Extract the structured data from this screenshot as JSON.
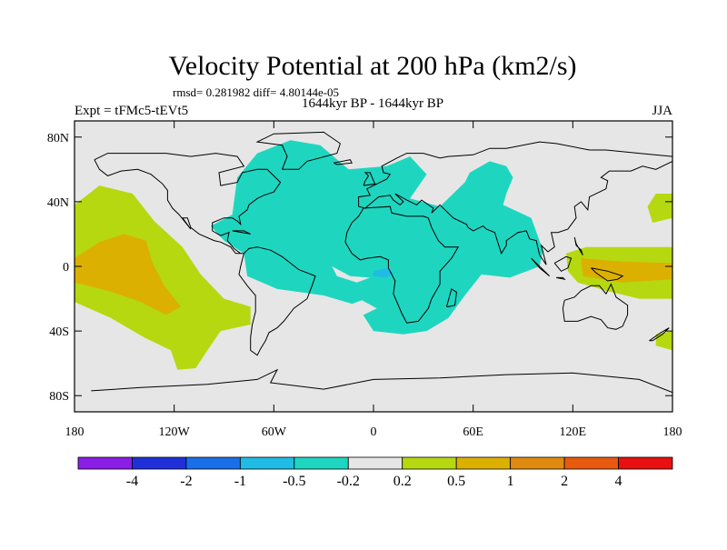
{
  "chart_data": {
    "type": "heatmap",
    "title": "Velocity Potential at 200 hPa (km2/s)",
    "stats": "rmsd= 0.281982 diff= 4.80144e-05",
    "experiment": "Expt = tFMc5-tEVt5",
    "period": "1644kyr BP - 1644kyr BP",
    "season": "JJA",
    "x_range": [
      -180,
      180
    ],
    "y_range": [
      -90,
      90
    ],
    "x_ticks": [
      {
        "value": -180,
        "label": "180"
      },
      {
        "value": -120,
        "label": "120W"
      },
      {
        "value": -60,
        "label": "60W"
      },
      {
        "value": 0,
        "label": "0"
      },
      {
        "value": 60,
        "label": "60E"
      },
      {
        "value": 120,
        "label": "120E"
      },
      {
        "value": 180,
        "label": "180"
      }
    ],
    "y_ticks": [
      {
        "value": 80,
        "label": "80N"
      },
      {
        "value": 40,
        "label": "40N"
      },
      {
        "value": 0,
        "label": "0"
      },
      {
        "value": -40,
        "label": "40S"
      },
      {
        "value": -80,
        "label": "80S"
      }
    ],
    "colorbar": {
      "colors": [
        "#8a1ee6",
        "#2030d8",
        "#1a6ee8",
        "#20bce6",
        "#1ed6c0",
        "#e6e6e6",
        "#b6d810",
        "#dcb000",
        "#e08a10",
        "#e85a10",
        "#e81010"
      ],
      "labels": [
        "-4",
        "-2",
        "-1",
        "-0.5",
        "-0.2",
        "0.2",
        "0.5",
        "1",
        "2",
        "4"
      ]
    },
    "regions": [
      {
        "name": "pacific-positive",
        "level": "0.2 to 0.5",
        "color": "#b6d810",
        "points": [
          [
            -180,
            38
          ],
          [
            -165,
            50
          ],
          [
            -145,
            45
          ],
          [
            -132,
            28
          ],
          [
            -115,
            12
          ],
          [
            -104,
            -5
          ],
          [
            -90,
            -20
          ],
          [
            -74,
            -25
          ],
          [
            -74,
            -36
          ],
          [
            -92,
            -40
          ],
          [
            -100,
            -52
          ],
          [
            -107,
            -63
          ],
          [
            -118,
            -64
          ],
          [
            -122,
            -52
          ],
          [
            -138,
            -44
          ],
          [
            -158,
            -32
          ],
          [
            -180,
            -22
          ]
        ]
      },
      {
        "name": "pacific-core",
        "level": "0.5 to 1",
        "color": "#dcb000",
        "points": [
          [
            -180,
            5
          ],
          [
            -165,
            15
          ],
          [
            -150,
            20
          ],
          [
            -137,
            16
          ],
          [
            -133,
            2
          ],
          [
            -126,
            -12
          ],
          [
            -116,
            -25
          ],
          [
            -125,
            -30
          ],
          [
            -140,
            -22
          ],
          [
            -160,
            -15
          ],
          [
            -180,
            -10
          ]
        ]
      },
      {
        "name": "atlantic-africa-negative",
        "level": "-0.5 to -0.2",
        "color": "#1ed6c0",
        "points": [
          [
            -85,
            32
          ],
          [
            -82,
            55
          ],
          [
            -70,
            70
          ],
          [
            -50,
            78
          ],
          [
            -32,
            75
          ],
          [
            -15,
            60
          ],
          [
            8,
            62
          ],
          [
            22,
            68
          ],
          [
            32,
            57
          ],
          [
            22,
            42
          ],
          [
            40,
            37
          ],
          [
            55,
            52
          ],
          [
            58,
            58
          ],
          [
            70,
            65
          ],
          [
            80,
            62
          ],
          [
            84,
            55
          ],
          [
            80,
            45
          ],
          [
            78,
            38
          ],
          [
            95,
            30
          ],
          [
            102,
            10
          ],
          [
            100,
            0
          ],
          [
            82,
            -7
          ],
          [
            65,
            -5
          ],
          [
            55,
            -18
          ],
          [
            45,
            -32
          ],
          [
            32,
            -40
          ],
          [
            18,
            -42
          ],
          [
            0,
            -40
          ],
          [
            -10,
            -24
          ],
          [
            -30,
            -18
          ],
          [
            -58,
            -14
          ],
          [
            -76,
            -6
          ],
          [
            -78,
            8
          ],
          [
            -90,
            16
          ],
          [
            -98,
            25
          ]
        ]
      },
      {
        "name": "atlantic-hole",
        "level": "-0.2 to 0.2",
        "color": "#e6e6e6",
        "points": [
          [
            -25,
            0
          ],
          [
            -14,
            -6
          ],
          [
            -2,
            -7
          ],
          [
            -10,
            -10
          ],
          [
            -22,
            -6
          ]
        ]
      },
      {
        "name": "south-atlantic-hole",
        "level": "-0.2 to 0.2",
        "color": "#e6e6e6",
        "points": [
          [
            -20,
            -26
          ],
          [
            -7,
            -21
          ],
          [
            2,
            -26
          ],
          [
            -8,
            -31
          ]
        ]
      },
      {
        "name": "gulf-of-guinea-core",
        "level": "-1 to -0.5",
        "color": "#20bce6",
        "points": [
          [
            0,
            -3
          ],
          [
            8,
            -1
          ],
          [
            12,
            -4
          ],
          [
            8,
            -7
          ],
          [
            0,
            -6
          ]
        ]
      },
      {
        "name": "west-pacific-positive",
        "level": "0.2 to 0.5",
        "color": "#b6d810",
        "points": [
          [
            116,
            8
          ],
          [
            128,
            12
          ],
          [
            150,
            12
          ],
          [
            180,
            12
          ],
          [
            180,
            -20
          ],
          [
            160,
            -20
          ],
          [
            140,
            -15
          ],
          [
            123,
            -10
          ],
          [
            117,
            -3
          ]
        ]
      },
      {
        "name": "west-pacific-core",
        "level": "0.5 to 1",
        "color": "#dcb000",
        "points": [
          [
            125,
            5
          ],
          [
            150,
            3
          ],
          [
            180,
            2
          ],
          [
            180,
            -8
          ],
          [
            150,
            -10
          ],
          [
            126,
            -6
          ]
        ]
      },
      {
        "name": "date-line-north",
        "level": "0.2 to 0.5",
        "color": "#b6d810",
        "points": [
          [
            168,
            27
          ],
          [
            180,
            30
          ],
          [
            180,
            45
          ],
          [
            170,
            45
          ],
          [
            165,
            37
          ]
        ]
      },
      {
        "name": "date-line-south",
        "level": "0.2 to 0.5",
        "color": "#b6d810",
        "points": [
          [
            170,
            -42
          ],
          [
            180,
            -40
          ],
          [
            180,
            -52
          ],
          [
            170,
            -49
          ]
        ]
      }
    ]
  }
}
